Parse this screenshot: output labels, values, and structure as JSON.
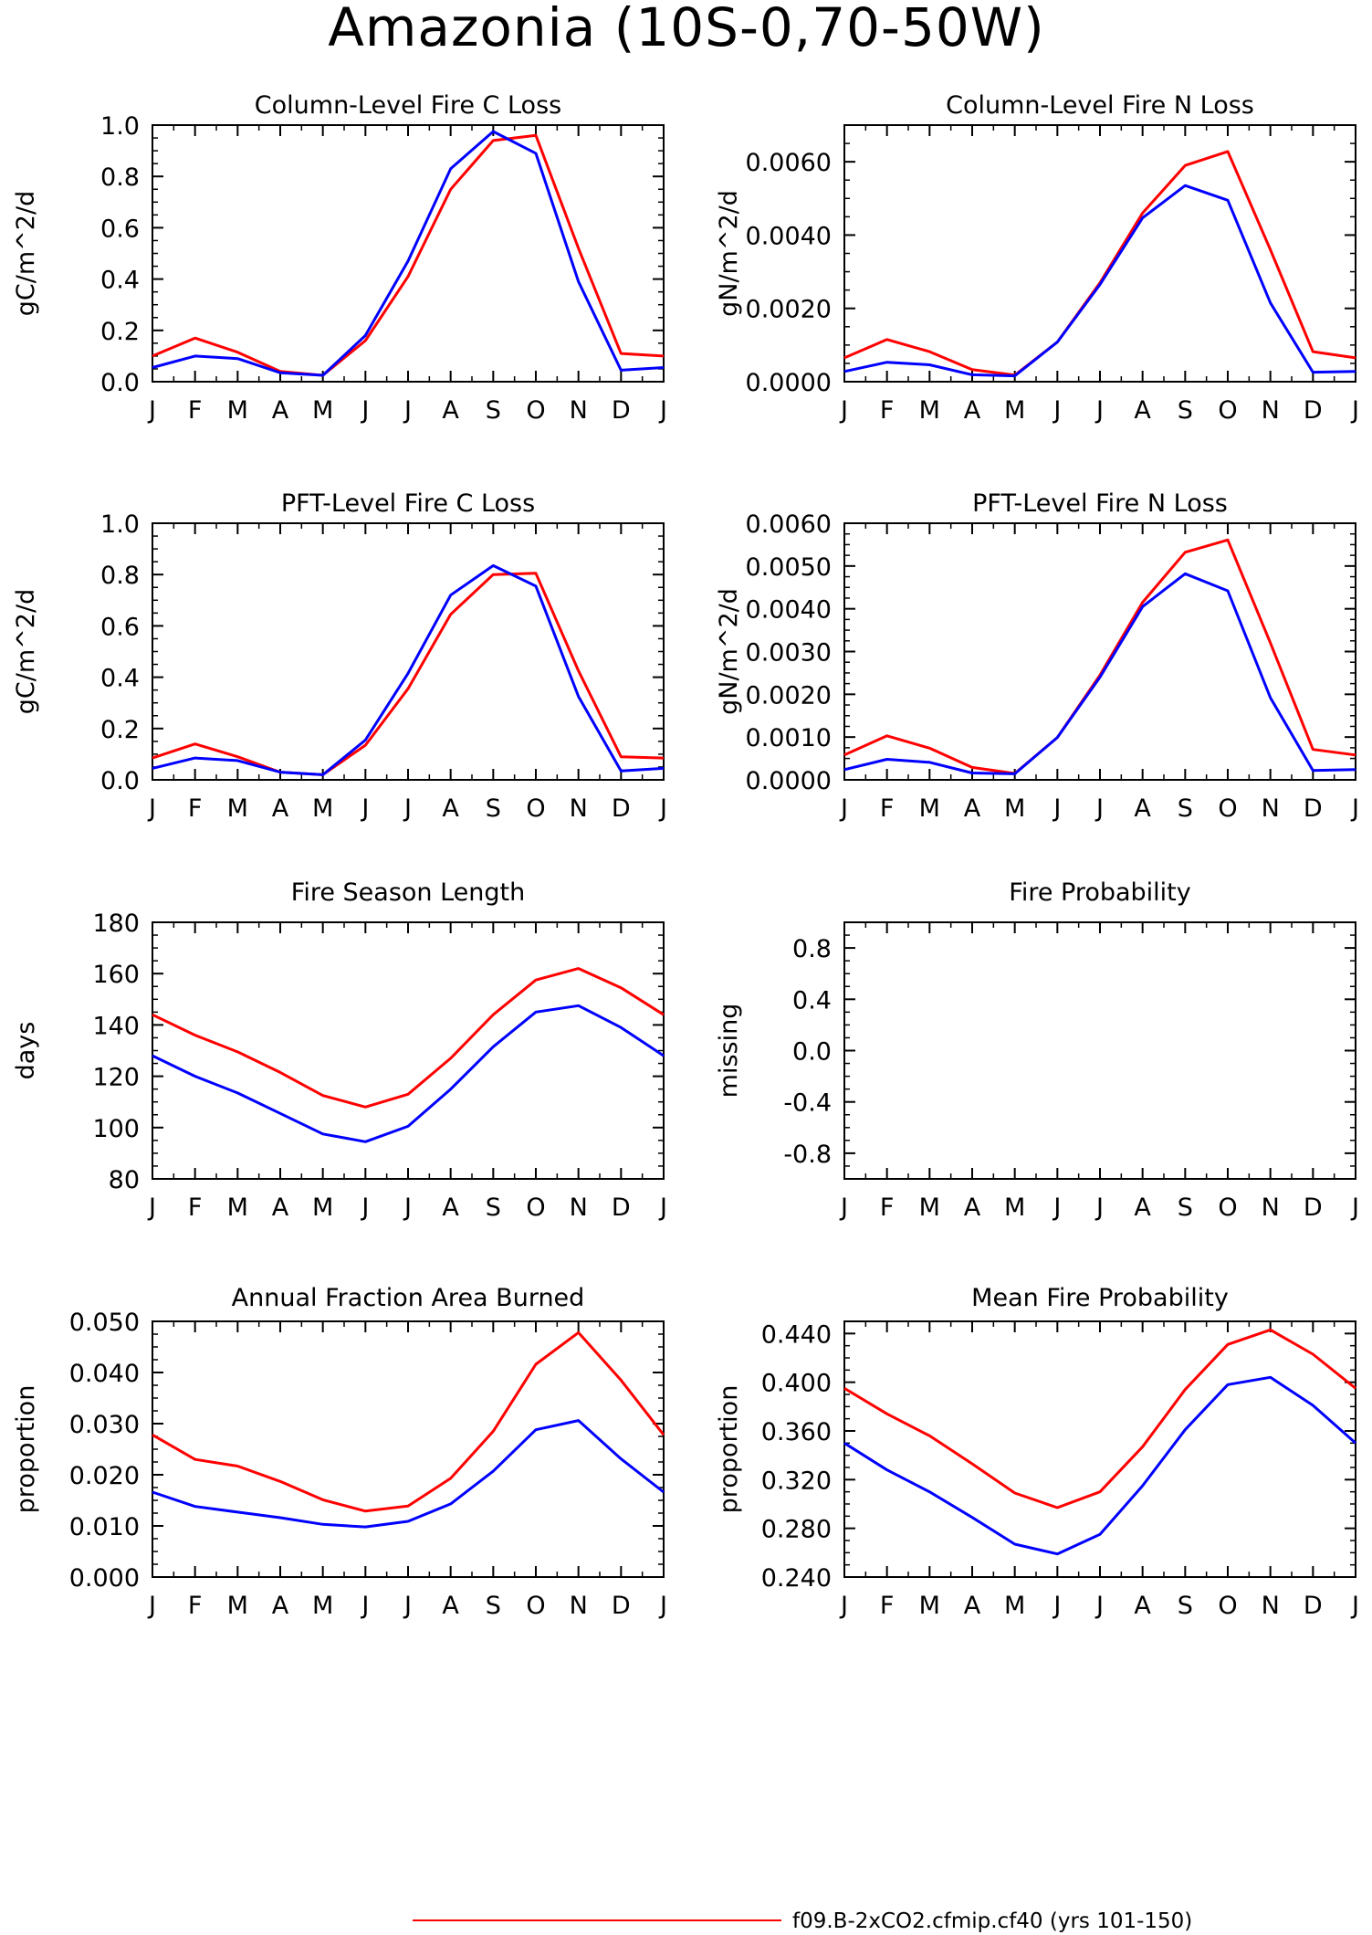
{
  "title": "Amazonia (10S-0,70-50W)",
  "months": [
    "J",
    "F",
    "M",
    "A",
    "M",
    "J",
    "J",
    "A",
    "S",
    "O",
    "N",
    "D",
    "J"
  ],
  "colors": {
    "red": "#ff0000",
    "blue": "#0000ff"
  },
  "legend": [
    {
      "label": "f09.B-2xCO2.cfmip.cf40 (yrs 101-150)",
      "color": "red"
    }
  ],
  "chart_data": [
    {
      "type": "line",
      "title": "Column-Level Fire C Loss",
      "ylabel": "gC/m^2/d",
      "ylim": [
        0,
        1.0
      ],
      "yticks": [
        0.0,
        0.2,
        0.4,
        0.6,
        0.8,
        1.0
      ],
      "yticklabels": [
        "0.0",
        "0.2",
        "0.4",
        "0.6",
        "0.8",
        "1.0"
      ],
      "series": [
        {
          "color": "red",
          "values": [
            0.1,
            0.17,
            0.115,
            0.04,
            0.025,
            0.16,
            0.41,
            0.75,
            0.94,
            0.96,
            0.52,
            0.11,
            0.1
          ]
        },
        {
          "color": "blue",
          "values": [
            0.055,
            0.1,
            0.09,
            0.035,
            0.025,
            0.18,
            0.47,
            0.83,
            0.975,
            0.89,
            0.39,
            0.045,
            0.055
          ]
        }
      ]
    },
    {
      "type": "line",
      "title": "Column-Level Fire N Loss",
      "ylabel": "gN/m^2/d",
      "ylim": [
        0,
        0.007
      ],
      "yticks": [
        0.0,
        0.002,
        0.004,
        0.006
      ],
      "yticklabels": [
        "0.0000",
        "0.0020",
        "0.0040",
        "0.0060"
      ],
      "series": [
        {
          "color": "red",
          "values": [
            0.00065,
            0.00115,
            0.00082,
            0.00033,
            0.00018,
            0.00108,
            0.0027,
            0.0046,
            0.0059,
            0.00628,
            0.0036,
            0.00082,
            0.00065
          ]
        },
        {
          "color": "blue",
          "values": [
            0.00028,
            0.00053,
            0.00046,
            0.00019,
            0.00016,
            0.00108,
            0.00265,
            0.00447,
            0.00535,
            0.00495,
            0.00215,
            0.00026,
            0.00028
          ]
        }
      ]
    },
    {
      "type": "line",
      "title": "PFT-Level Fire C Loss",
      "ylabel": "gC/m^2/d",
      "ylim": [
        0,
        1.0
      ],
      "yticks": [
        0.0,
        0.2,
        0.4,
        0.6,
        0.8,
        1.0
      ],
      "yticklabels": [
        "0.0",
        "0.2",
        "0.4",
        "0.6",
        "0.8",
        "1.0"
      ],
      "series": [
        {
          "color": "red",
          "values": [
            0.085,
            0.14,
            0.09,
            0.03,
            0.02,
            0.135,
            0.355,
            0.645,
            0.8,
            0.805,
            0.425,
            0.09,
            0.085
          ]
        },
        {
          "color": "blue",
          "values": [
            0.045,
            0.085,
            0.075,
            0.03,
            0.02,
            0.155,
            0.415,
            0.72,
            0.835,
            0.755,
            0.325,
            0.035,
            0.045
          ]
        }
      ]
    },
    {
      "type": "line",
      "title": "PFT-Level Fire N Loss",
      "ylabel": "gN/m^2/d",
      "ylim": [
        0,
        0.006
      ],
      "yticks": [
        0.0,
        0.001,
        0.002,
        0.003,
        0.004,
        0.005,
        0.006
      ],
      "yticklabels": [
        "0.0000",
        "0.0010",
        "0.0020",
        "0.0030",
        "0.0040",
        "0.0050",
        "0.0060"
      ],
      "series": [
        {
          "color": "red",
          "values": [
            0.00058,
            0.00103,
            0.00074,
            0.00029,
            0.00015,
            0.00099,
            0.00245,
            0.00415,
            0.00532,
            0.00561,
            0.0032,
            0.00071,
            0.00058
          ]
        },
        {
          "color": "blue",
          "values": [
            0.00024,
            0.00048,
            0.00041,
            0.00016,
            0.00014,
            0.00099,
            0.0024,
            0.00405,
            0.00482,
            0.00442,
            0.00192,
            0.00022,
            0.00024
          ]
        }
      ]
    },
    {
      "type": "line",
      "title": "Fire Season Length",
      "ylabel": "days",
      "ylim": [
        80,
        180
      ],
      "yticks": [
        80,
        100,
        120,
        140,
        160,
        180
      ],
      "yticklabels": [
        "80",
        "100",
        "120",
        "140",
        "160",
        "180"
      ],
      "series": [
        {
          "color": "red",
          "values": [
            144,
            136,
            129.5,
            121.5,
            112.5,
            108,
            113,
            127,
            144,
            157.5,
            162,
            154.5,
            144
          ]
        },
        {
          "color": "blue",
          "values": [
            128,
            120,
            113.5,
            105.5,
            97.5,
            94.5,
            100.5,
            115,
            131.5,
            145,
            147.5,
            139,
            128
          ]
        }
      ]
    },
    {
      "type": "line",
      "title": "Fire Probability",
      "ylabel": "missing",
      "ylim": [
        -1.0,
        1.0
      ],
      "yticks": [
        -0.8,
        -0.4,
        0.0,
        0.4,
        0.8
      ],
      "yticklabels": [
        "-0.8",
        "-0.4",
        "0.0",
        "0.4",
        "0.8"
      ],
      "series": []
    },
    {
      "type": "line",
      "title": "Annual Fraction Area Burned",
      "ylabel": "proportion",
      "ylim": [
        0,
        0.05
      ],
      "yticks": [
        0.0,
        0.01,
        0.02,
        0.03,
        0.04,
        0.05
      ],
      "yticklabels": [
        "0.000",
        "0.010",
        "0.020",
        "0.030",
        "0.040",
        "0.050"
      ],
      "series": [
        {
          "color": "red",
          "values": [
            0.0278,
            0.023,
            0.0217,
            0.0187,
            0.0151,
            0.0129,
            0.0139,
            0.0193,
            0.0285,
            0.0416,
            0.0478,
            0.0385,
            0.0278
          ]
        },
        {
          "color": "blue",
          "values": [
            0.0166,
            0.0138,
            0.0127,
            0.0116,
            0.0103,
            0.0098,
            0.0109,
            0.0143,
            0.0207,
            0.0288,
            0.0306,
            0.0231,
            0.0166
          ]
        }
      ]
    },
    {
      "type": "line",
      "title": "Mean Fire Probability",
      "ylabel": "proportion",
      "ylim": [
        0.24,
        0.45
      ],
      "yticks": [
        0.24,
        0.28,
        0.32,
        0.36,
        0.4,
        0.44
      ],
      "yticklabels": [
        "0.240",
        "0.280",
        "0.320",
        "0.360",
        "0.400",
        "0.440"
      ],
      "series": [
        {
          "color": "red",
          "values": [
            0.395,
            0.374,
            0.356,
            0.333,
            0.309,
            0.297,
            0.31,
            0.347,
            0.394,
            0.431,
            0.443,
            0.423,
            0.395
          ]
        },
        {
          "color": "blue",
          "values": [
            0.35,
            0.328,
            0.31,
            0.289,
            0.267,
            0.259,
            0.275,
            0.315,
            0.361,
            0.398,
            0.404,
            0.381,
            0.35
          ]
        }
      ]
    }
  ]
}
